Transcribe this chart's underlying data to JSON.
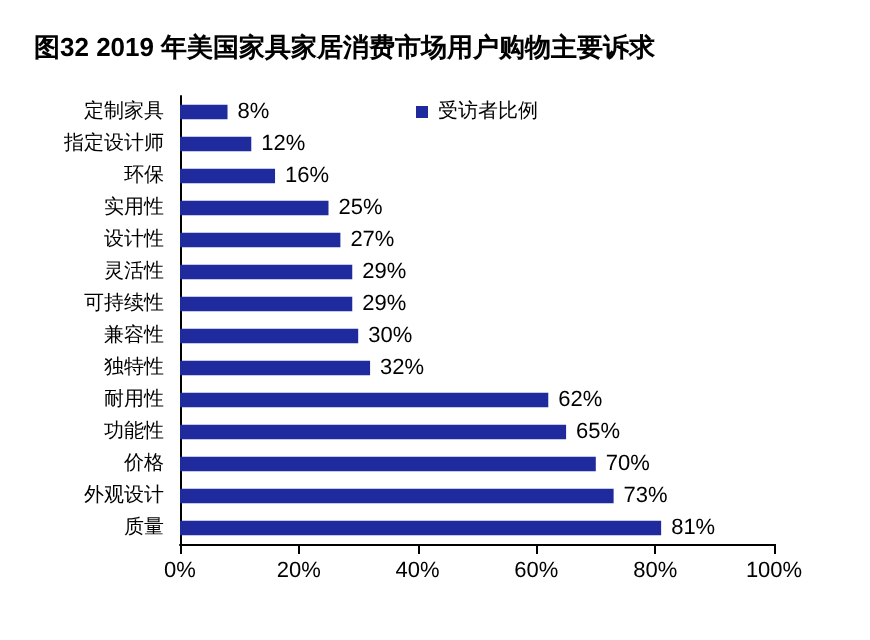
{
  "chart_data": {
    "type": "bar",
    "orientation": "horizontal",
    "title": "图32 2019 年美国家具家居消费市场用户购物主要诉求",
    "categories": [
      "定制家具",
      "指定设计师",
      "环保",
      "实用性",
      "设计性",
      "灵活性",
      "可持续性",
      "兼容性",
      "独特性",
      "耐用性",
      "功能性",
      "价格",
      "外观设计",
      "质量"
    ],
    "series": [
      {
        "name": "受访者比例",
        "color": "#1f2a9c",
        "values": [
          8,
          12,
          16,
          25,
          27,
          29,
          29,
          30,
          32,
          62,
          65,
          70,
          73,
          81
        ],
        "value_labels": [
          "8%",
          "12%",
          "16%",
          "25%",
          "27%",
          "29%",
          "29%",
          "30%",
          "32%",
          "62%",
          "65%",
          "70%",
          "73%",
          "81%"
        ]
      }
    ],
    "xlim": [
      0,
      100
    ],
    "xticks": [
      {
        "value": 0,
        "label": "0%"
      },
      {
        "value": 20,
        "label": "20%"
      },
      {
        "value": 40,
        "label": "40%"
      },
      {
        "value": 60,
        "label": "60%"
      },
      {
        "value": 80,
        "label": "80%"
      },
      {
        "value": 100,
        "label": "100%"
      }
    ],
    "legend": "top",
    "grid": false
  }
}
